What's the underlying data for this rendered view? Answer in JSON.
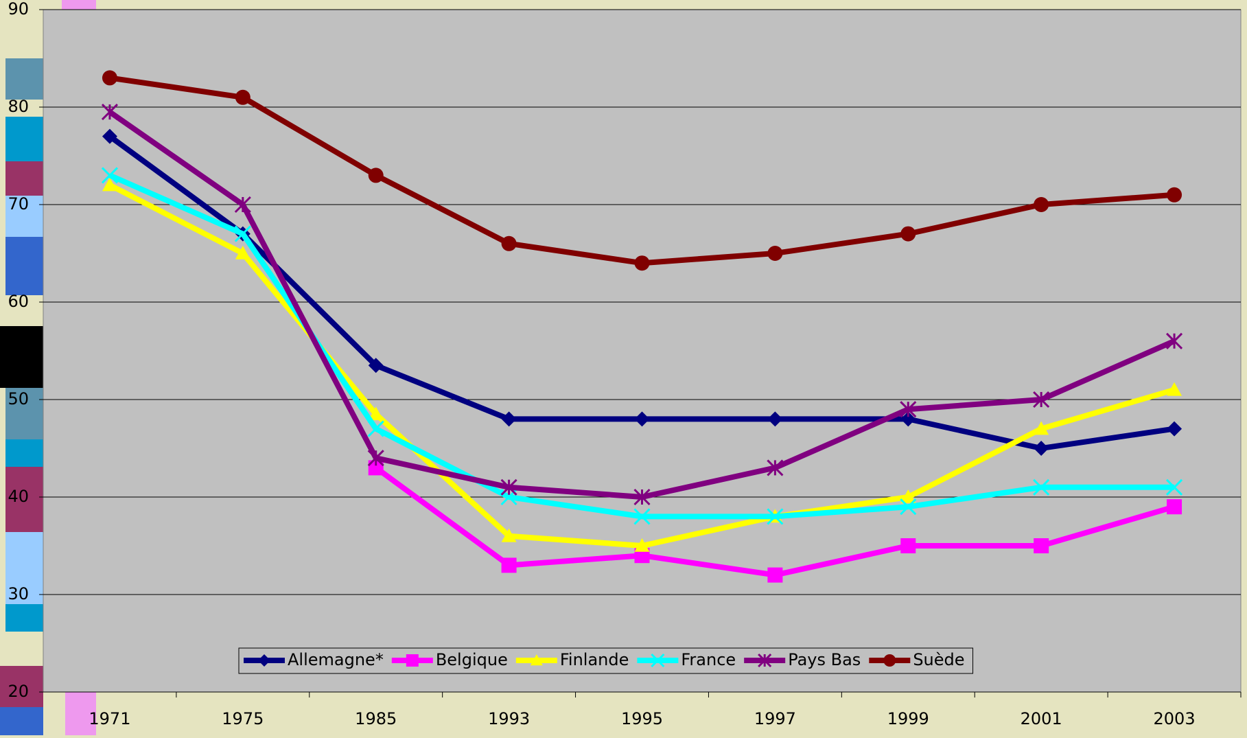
{
  "chart_data": {
    "type": "line",
    "categories": [
      "1971",
      "1975",
      "1985",
      "1993",
      "1995",
      "1997",
      "1999",
      "2001",
      "2003"
    ],
    "ylim": [
      20,
      90
    ],
    "yticks": [
      20,
      30,
      40,
      50,
      60,
      70,
      80,
      90
    ],
    "grid": true,
    "legend": "bottom",
    "series": [
      {
        "name": "Allemagne*",
        "color": "#000080",
        "marker": "diamond",
        "values": [
          77,
          67,
          53.5,
          48,
          48,
          48,
          48,
          45,
          47
        ]
      },
      {
        "name": "Belgique",
        "color": "#ff00ff",
        "marker": "square",
        "values": [
          null,
          null,
          43,
          33,
          34,
          32,
          35,
          35,
          39
        ]
      },
      {
        "name": "Finlande",
        "color": "#ffff00",
        "marker": "triangle",
        "values": [
          72,
          65,
          48.5,
          36,
          35,
          38,
          40,
          47,
          51
        ]
      },
      {
        "name": "France",
        "color": "#00ffff",
        "marker": "x",
        "values": [
          73,
          67,
          47,
          40,
          38,
          38,
          39,
          41,
          41
        ]
      },
      {
        "name": "Pays Bas",
        "color": "#800080",
        "marker": "star",
        "values": [
          79.5,
          70,
          44,
          41,
          40,
          43,
          49,
          50,
          56
        ]
      },
      {
        "name": "Suède",
        "color": "#800000",
        "marker": "circle",
        "values": [
          83,
          81,
          73,
          66,
          64,
          65,
          67,
          70,
          71
        ]
      }
    ]
  }
}
